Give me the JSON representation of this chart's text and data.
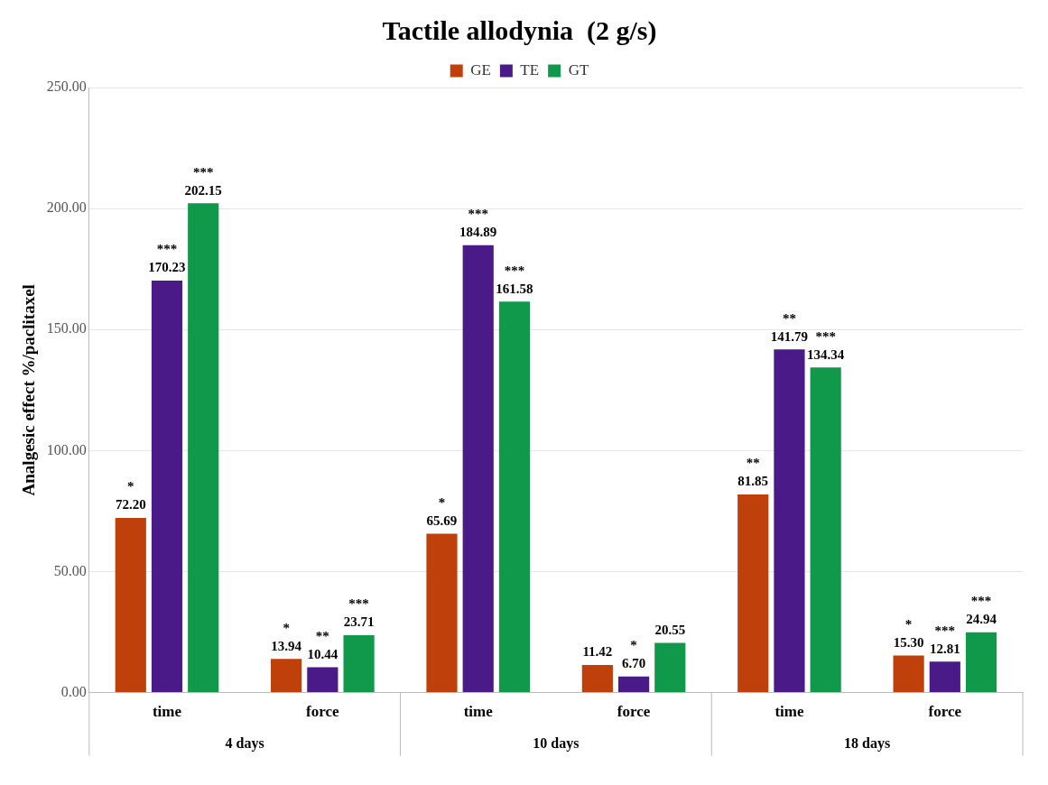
{
  "chart_data": {
    "type": "bar",
    "title": "Tactile allodynia  (2 g/s)",
    "ylabel": "Analgesic effect %/paclitaxel",
    "categories": [
      "time",
      "force",
      "time",
      "force",
      "time",
      "force"
    ],
    "annotations": [
      "4 days",
      "10 days",
      "18 days"
    ],
    "series": [
      {
        "name": "GE",
        "color": "#c0400c",
        "values": [
          72.2,
          13.94,
          65.69,
          11.42,
          81.85,
          15.3
        ],
        "value_labels": [
          "*\n72.20",
          "*\n13.94",
          "*\n65.69",
          "11.42",
          "**\n81.85",
          "*\n15.30"
        ]
      },
      {
        "name": "TE",
        "color": "#4a1a88",
        "values": [
          170.23,
          10.44,
          184.89,
          6.7,
          141.79,
          12.81
        ],
        "value_labels": [
          "***\n170.23",
          "**\n10.44",
          "***\n184.89",
          "*\n6.70",
          "**\n141.79",
          "***\n12.81"
        ]
      },
      {
        "name": "GT",
        "color": "#10994a",
        "values": [
          202.15,
          23.71,
          161.58,
          20.55,
          134.34,
          24.94
        ],
        "value_labels": [
          "***\n202.15",
          "***\n23.71",
          "***\n161.58",
          "20.55",
          "***\n134.34",
          "***\n24.94"
        ]
      }
    ],
    "ylim": [
      0,
      250
    ],
    "yticks": [
      {
        "value": 0,
        "label": "0.00"
      },
      {
        "value": 50,
        "label": "50.00"
      },
      {
        "value": 100,
        "label": "100.00"
      },
      {
        "value": 150,
        "label": "150.00"
      },
      {
        "value": 200,
        "label": "200.00"
      },
      {
        "value": 250,
        "label": "250.00"
      }
    ],
    "grid": "y",
    "legend": "top"
  }
}
